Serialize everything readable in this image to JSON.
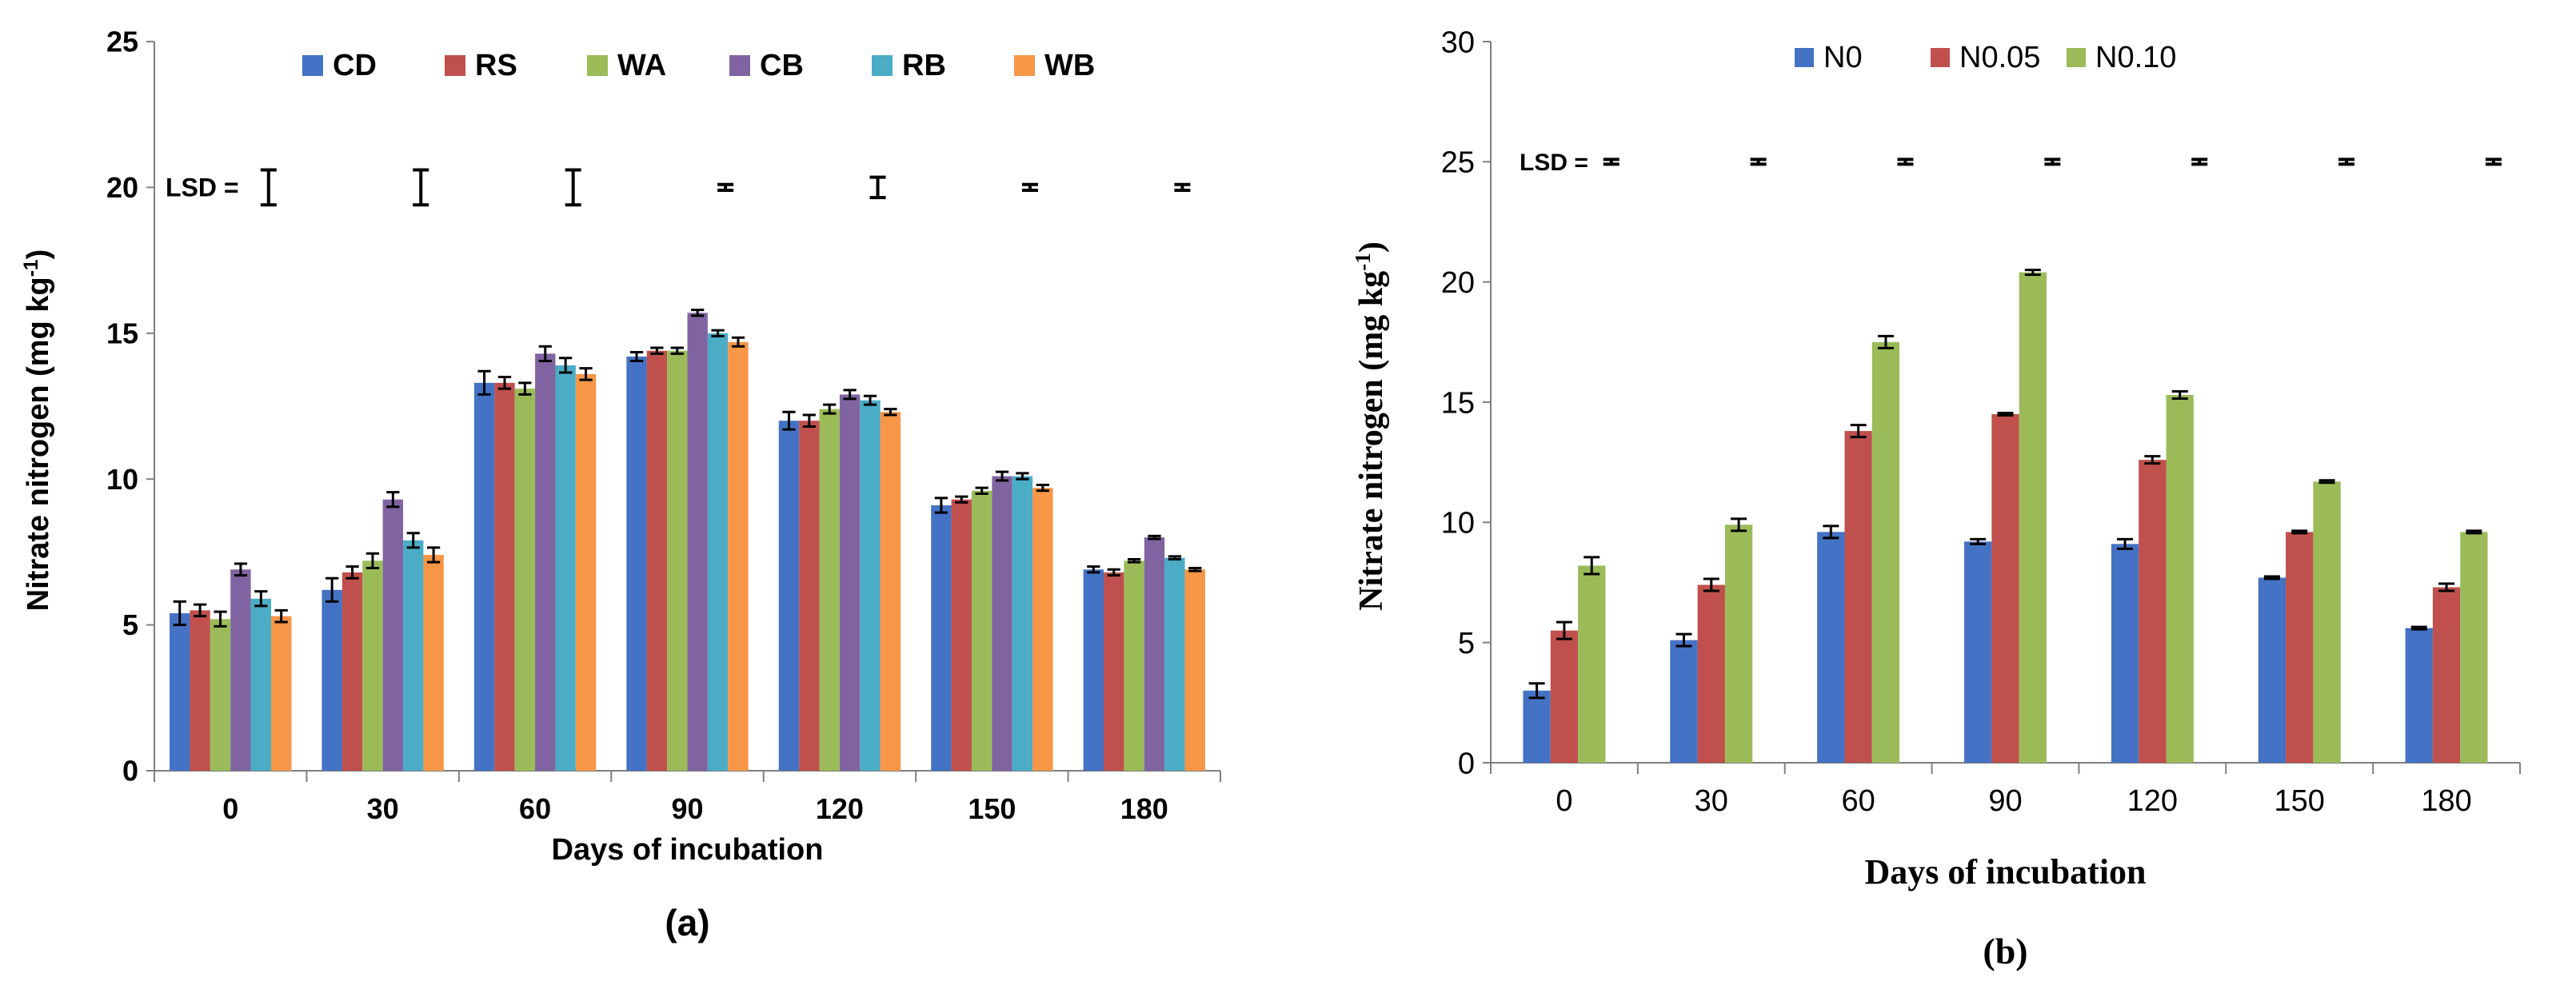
{
  "chart_data": [
    {
      "type": "bar",
      "panel_label": "(a)",
      "xlabel": "Days of incubation",
      "ylabel": "Nitrate nitrogen (mg kg",
      "ylabel_sup": "-1",
      "ylabel_close": ")",
      "categories": [
        "0",
        "30",
        "60",
        "90",
        "120",
        "150",
        "180"
      ],
      "ylim": [
        0,
        25
      ],
      "yticks": [
        "0",
        "5",
        "10",
        "15",
        "20",
        "25"
      ],
      "legend_position": "top",
      "lsd_label": "LSD =",
      "lsd_value": 20,
      "lsd_errors": [
        0.6,
        0.6,
        0.6,
        0.1,
        0.35,
        0.1,
        0.1
      ],
      "colors": [
        "#4472C4",
        "#C0504D",
        "#9BBB59",
        "#8064A2",
        "#4BACC6",
        "#F79646"
      ],
      "series": [
        {
          "name": "CD",
          "values": [
            5.4,
            6.2,
            13.3,
            14.2,
            12.0,
            9.1,
            6.9
          ],
          "errors": [
            0.4,
            0.4,
            0.4,
            0.15,
            0.3,
            0.25,
            0.1
          ]
        },
        {
          "name": "RS",
          "values": [
            5.5,
            6.8,
            13.3,
            14.4,
            12.0,
            9.3,
            6.8
          ],
          "errors": [
            0.2,
            0.2,
            0.2,
            0.1,
            0.2,
            0.1,
            0.1
          ]
        },
        {
          "name": "WA",
          "values": [
            5.2,
            7.2,
            13.1,
            14.4,
            12.4,
            9.6,
            7.2
          ],
          "errors": [
            0.25,
            0.25,
            0.2,
            0.1,
            0.15,
            0.1,
            0.05
          ]
        },
        {
          "name": "CB",
          "values": [
            6.9,
            9.3,
            14.3,
            15.7,
            12.9,
            10.1,
            8.0
          ],
          "errors": [
            0.2,
            0.25,
            0.25,
            0.1,
            0.15,
            0.15,
            0.05
          ]
        },
        {
          "name": "RB",
          "values": [
            5.9,
            7.9,
            13.9,
            15.0,
            12.7,
            10.1,
            7.3
          ],
          "errors": [
            0.25,
            0.25,
            0.25,
            0.1,
            0.15,
            0.1,
            0.05
          ]
        },
        {
          "name": "WB",
          "values": [
            5.3,
            7.4,
            13.6,
            14.7,
            12.3,
            9.7,
            6.9
          ],
          "errors": [
            0.2,
            0.25,
            0.2,
            0.15,
            0.1,
            0.1,
            0.05
          ]
        }
      ]
    },
    {
      "type": "bar",
      "panel_label": "(b)",
      "xlabel": "Days of incubation",
      "ylabel": "Nitrate nitrogen (mg kg",
      "ylabel_sup": "-1",
      "ylabel_close": ")",
      "categories": [
        "0",
        "30",
        "60",
        "90",
        "120",
        "150",
        "180"
      ],
      "ylim": [
        0,
        30
      ],
      "yticks": [
        "0",
        "5",
        "10",
        "15",
        "20",
        "25",
        "30"
      ],
      "legend_position": "top",
      "lsd_label": "LSD =",
      "lsd_value": 25,
      "lsd_errors": [
        0.1,
        0.1,
        0.1,
        0.1,
        0.1,
        0.1,
        0.1
      ],
      "colors": [
        "#4472C4",
        "#C0504D",
        "#9BBB59"
      ],
      "series": [
        {
          "name": "N0",
          "values": [
            3.0,
            5.1,
            9.6,
            9.2,
            9.1,
            7.7,
            5.6
          ],
          "errors": [
            0.3,
            0.25,
            0.25,
            0.1,
            0.2,
            0.05,
            0.05
          ]
        },
        {
          "name": "N0.05",
          "values": [
            5.5,
            7.4,
            13.8,
            14.5,
            12.6,
            9.6,
            7.3
          ],
          "errors": [
            0.35,
            0.25,
            0.25,
            0.05,
            0.15,
            0.05,
            0.15
          ]
        },
        {
          "name": "N0.10",
          "values": [
            8.2,
            9.9,
            17.5,
            20.4,
            15.3,
            11.7,
            9.6
          ],
          "errors": [
            0.35,
            0.25,
            0.25,
            0.1,
            0.15,
            0.05,
            0.05
          ]
        }
      ]
    }
  ]
}
